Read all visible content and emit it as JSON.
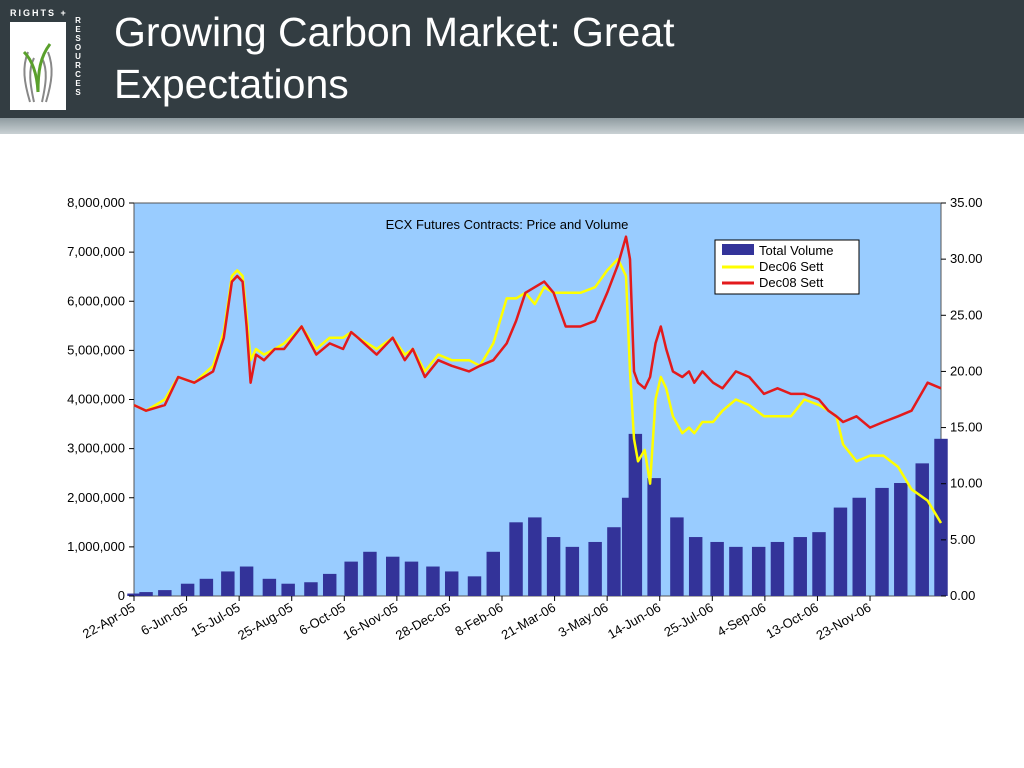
{
  "slide": {
    "title": "Growing Carbon Market: Great Expectations",
    "logo": {
      "top_text": "RIGHTS +",
      "side_text": "RESOURCES",
      "icon": "hands-plant-icon"
    }
  },
  "colors": {
    "header": "#333d42",
    "plot_bg": "#99ccff",
    "volume": "#333399",
    "dec06": "#ffff00",
    "dec08": "#e31a1c"
  },
  "chart_data": {
    "type": "bar",
    "title": "ECX Futures Contracts: Price and Volume",
    "xlabel": "",
    "ylabel": "",
    "y_left_lim": [
      0,
      8000000
    ],
    "y_left_ticks": [
      "0",
      "1,000,000",
      "2,000,000",
      "3,000,000",
      "4,000,000",
      "5,000,000",
      "6,000,000",
      "7,000,000",
      "8,000,000"
    ],
    "y_right_lim": [
      0,
      35
    ],
    "y_right_ticks": [
      "0.00",
      "5.00",
      "10.00",
      "15.00",
      "20.00",
      "25.00",
      "30.00",
      "35.00"
    ],
    "x_range": [
      "2005-04-22",
      "2006-12-15"
    ],
    "x_ticks": [
      "22-Apr-05",
      "6-Jun-05",
      "15-Jul-05",
      "25-Aug-05",
      "6-Oct-05",
      "16-Nov-05",
      "28-Dec-05",
      "8-Feb-06",
      "21-Mar-06",
      "3-May-06",
      "14-Jun-06",
      "25-Jul-06",
      "4-Sep-06",
      "13-Oct-06",
      "23-Nov-06"
    ],
    "legend": {
      "position": "top-right",
      "entries": [
        "Total Volume",
        "Dec06 Sett",
        "Dec08 Sett"
      ]
    },
    "grid": "horizontal",
    "series": [
      {
        "name": "Dec06 Sett",
        "type": "line",
        "axis": "right",
        "x": [
          "2005-04-22",
          "2005-05-01",
          "2005-05-15",
          "2005-05-25",
          "2005-06-06",
          "2005-06-20",
          "2005-06-28",
          "2005-07-04",
          "2005-07-08",
          "2005-07-12",
          "2005-07-15",
          "2005-07-18",
          "2005-07-22",
          "2005-07-28",
          "2005-08-05",
          "2005-08-12",
          "2005-08-25",
          "2005-09-05",
          "2005-09-15",
          "2005-09-25",
          "2005-10-01",
          "2005-10-06",
          "2005-10-20",
          "2005-11-01",
          "2005-11-10",
          "2005-11-16",
          "2005-11-25",
          "2005-12-05",
          "2005-12-15",
          "2005-12-28",
          "2006-01-05",
          "2006-01-15",
          "2006-01-25",
          "2006-02-01",
          "2006-02-08",
          "2006-02-15",
          "2006-02-22",
          "2006-03-01",
          "2006-03-10",
          "2006-03-21",
          "2006-04-01",
          "2006-04-10",
          "2006-04-18",
          "2006-04-24",
          "2006-04-27",
          "2006-04-30",
          "2006-05-03",
          "2006-05-08",
          "2006-05-12",
          "2006-05-16",
          "2006-05-20",
          "2006-05-24",
          "2006-05-29",
          "2006-06-05",
          "2006-06-10",
          "2006-06-14",
          "2006-06-20",
          "2006-06-28",
          "2006-07-05",
          "2006-07-15",
          "2006-07-25",
          "2006-08-05",
          "2006-08-15",
          "2006-08-25",
          "2006-09-04",
          "2006-09-15",
          "2006-09-22",
          "2006-09-28",
          "2006-10-03",
          "2006-10-13",
          "2006-10-23",
          "2006-11-02",
          "2006-11-13",
          "2006-11-23",
          "2006-12-05",
          "2006-12-15"
        ],
        "values": [
          17.0,
          16.5,
          17.5,
          19.5,
          19.0,
          20.5,
          23.5,
          28.5,
          29.0,
          28.5,
          25.0,
          21.0,
          22.0,
          21.5,
          22.0,
          22.5,
          24.0,
          22.0,
          23.0,
          23.0,
          23.5,
          23.0,
          22.0,
          23.0,
          21.5,
          22.0,
          20.0,
          21.5,
          21.0,
          21.0,
          20.5,
          22.5,
          26.5,
          26.5,
          27.0,
          26.0,
          27.5,
          27.0,
          27.0,
          27.0,
          27.5,
          29.0,
          30.0,
          28.5,
          20.0,
          14.0,
          12.0,
          13.0,
          10.0,
          17.5,
          19.5,
          18.5,
          16.0,
          14.5,
          15.0,
          14.5,
          15.5,
          15.5,
          16.5,
          17.5,
          17.0,
          16.0,
          16.0,
          16.0,
          17.5,
          17.0,
          16.5,
          16.0,
          13.5,
          12.0,
          12.5,
          12.5,
          11.5,
          9.5,
          8.5,
          6.5
        ]
      },
      {
        "name": "Dec08 Sett",
        "type": "line",
        "axis": "right",
        "x": [
          "2005-04-22",
          "2005-05-01",
          "2005-05-15",
          "2005-05-25",
          "2005-06-06",
          "2005-06-20",
          "2005-06-28",
          "2005-07-04",
          "2005-07-08",
          "2005-07-12",
          "2005-07-15",
          "2005-07-18",
          "2005-07-22",
          "2005-07-28",
          "2005-08-05",
          "2005-08-12",
          "2005-08-25",
          "2005-09-05",
          "2005-09-15",
          "2005-09-25",
          "2005-10-01",
          "2005-10-06",
          "2005-10-20",
          "2005-11-01",
          "2005-11-10",
          "2005-11-16",
          "2005-11-25",
          "2005-12-05",
          "2005-12-15",
          "2005-12-28",
          "2006-01-05",
          "2006-01-15",
          "2006-01-25",
          "2006-02-01",
          "2006-02-08",
          "2006-02-15",
          "2006-02-22",
          "2006-03-01",
          "2006-03-10",
          "2006-03-21",
          "2006-04-01",
          "2006-04-10",
          "2006-04-18",
          "2006-04-24",
          "2006-04-27",
          "2006-04-30",
          "2006-05-03",
          "2006-05-08",
          "2006-05-12",
          "2006-05-16",
          "2006-05-20",
          "2006-05-24",
          "2006-05-29",
          "2006-06-05",
          "2006-06-10",
          "2006-06-14",
          "2006-06-20",
          "2006-06-28",
          "2006-07-05",
          "2006-07-15",
          "2006-07-25",
          "2006-08-05",
          "2006-08-15",
          "2006-08-25",
          "2006-09-04",
          "2006-09-15",
          "2006-09-22",
          "2006-09-28",
          "2006-10-03",
          "2006-10-13",
          "2006-10-23",
          "2006-11-02",
          "2006-11-13",
          "2006-11-23",
          "2006-12-05",
          "2006-12-15"
        ],
        "values": [
          17.0,
          16.5,
          17.0,
          19.5,
          19.0,
          20.0,
          23.0,
          28.0,
          28.5,
          28.0,
          24.0,
          19.0,
          21.5,
          21.0,
          22.0,
          22.0,
          24.0,
          21.5,
          22.5,
          22.0,
          23.5,
          23.0,
          21.5,
          23.0,
          21.0,
          22.0,
          19.5,
          21.0,
          20.5,
          20.0,
          20.5,
          21.0,
          22.5,
          24.5,
          27.0,
          27.5,
          28.0,
          27.0,
          24.0,
          24.0,
          24.5,
          27.0,
          29.5,
          32.0,
          30.0,
          20.0,
          19.0,
          18.5,
          19.5,
          22.5,
          24.0,
          22.0,
          20.0,
          19.5,
          20.0,
          19.0,
          20.0,
          19.0,
          18.5,
          20.0,
          19.5,
          18.0,
          18.5,
          18.0,
          18.0,
          17.5,
          16.5,
          16.0,
          15.5,
          16.0,
          15.0,
          15.5,
          16.0,
          16.5,
          19.0,
          18.5
        ]
      }
    ],
    "volume_series": {
      "name": "Total Volume",
      "type": "bar",
      "axis": "left",
      "x": [
        "2005-04-22",
        "2005-05-01",
        "2005-05-15",
        "2005-06-01",
        "2005-06-15",
        "2005-07-01",
        "2005-07-15",
        "2005-08-01",
        "2005-08-15",
        "2005-09-01",
        "2005-09-15",
        "2005-10-01",
        "2005-10-15",
        "2005-11-01",
        "2005-11-15",
        "2005-12-01",
        "2005-12-15",
        "2006-01-01",
        "2006-01-15",
        "2006-02-01",
        "2006-02-15",
        "2006-03-01",
        "2006-03-15",
        "2006-04-01",
        "2006-04-15",
        "2006-04-26",
        "2006-05-01",
        "2006-05-15",
        "2006-06-01",
        "2006-06-15",
        "2006-07-01",
        "2006-07-15",
        "2006-08-01",
        "2006-08-15",
        "2006-09-01",
        "2006-09-15",
        "2006-10-01",
        "2006-10-15",
        "2006-11-01",
        "2006-11-15",
        "2006-12-01",
        "2006-12-15"
      ],
      "values": [
        50000,
        80000,
        120000,
        250000,
        350000,
        500000,
        600000,
        350000,
        250000,
        280000,
        450000,
        700000,
        900000,
        800000,
        700000,
        600000,
        500000,
        400000,
        900000,
        1500000,
        1600000,
        1200000,
        1000000,
        1100000,
        1400000,
        2000000,
        3300000,
        2400000,
        1600000,
        1200000,
        1100000,
        1000000,
        1000000,
        1100000,
        1200000,
        1300000,
        1800000,
        2000000,
        2200000,
        2300000,
        2700000,
        3200000
      ]
    }
  }
}
